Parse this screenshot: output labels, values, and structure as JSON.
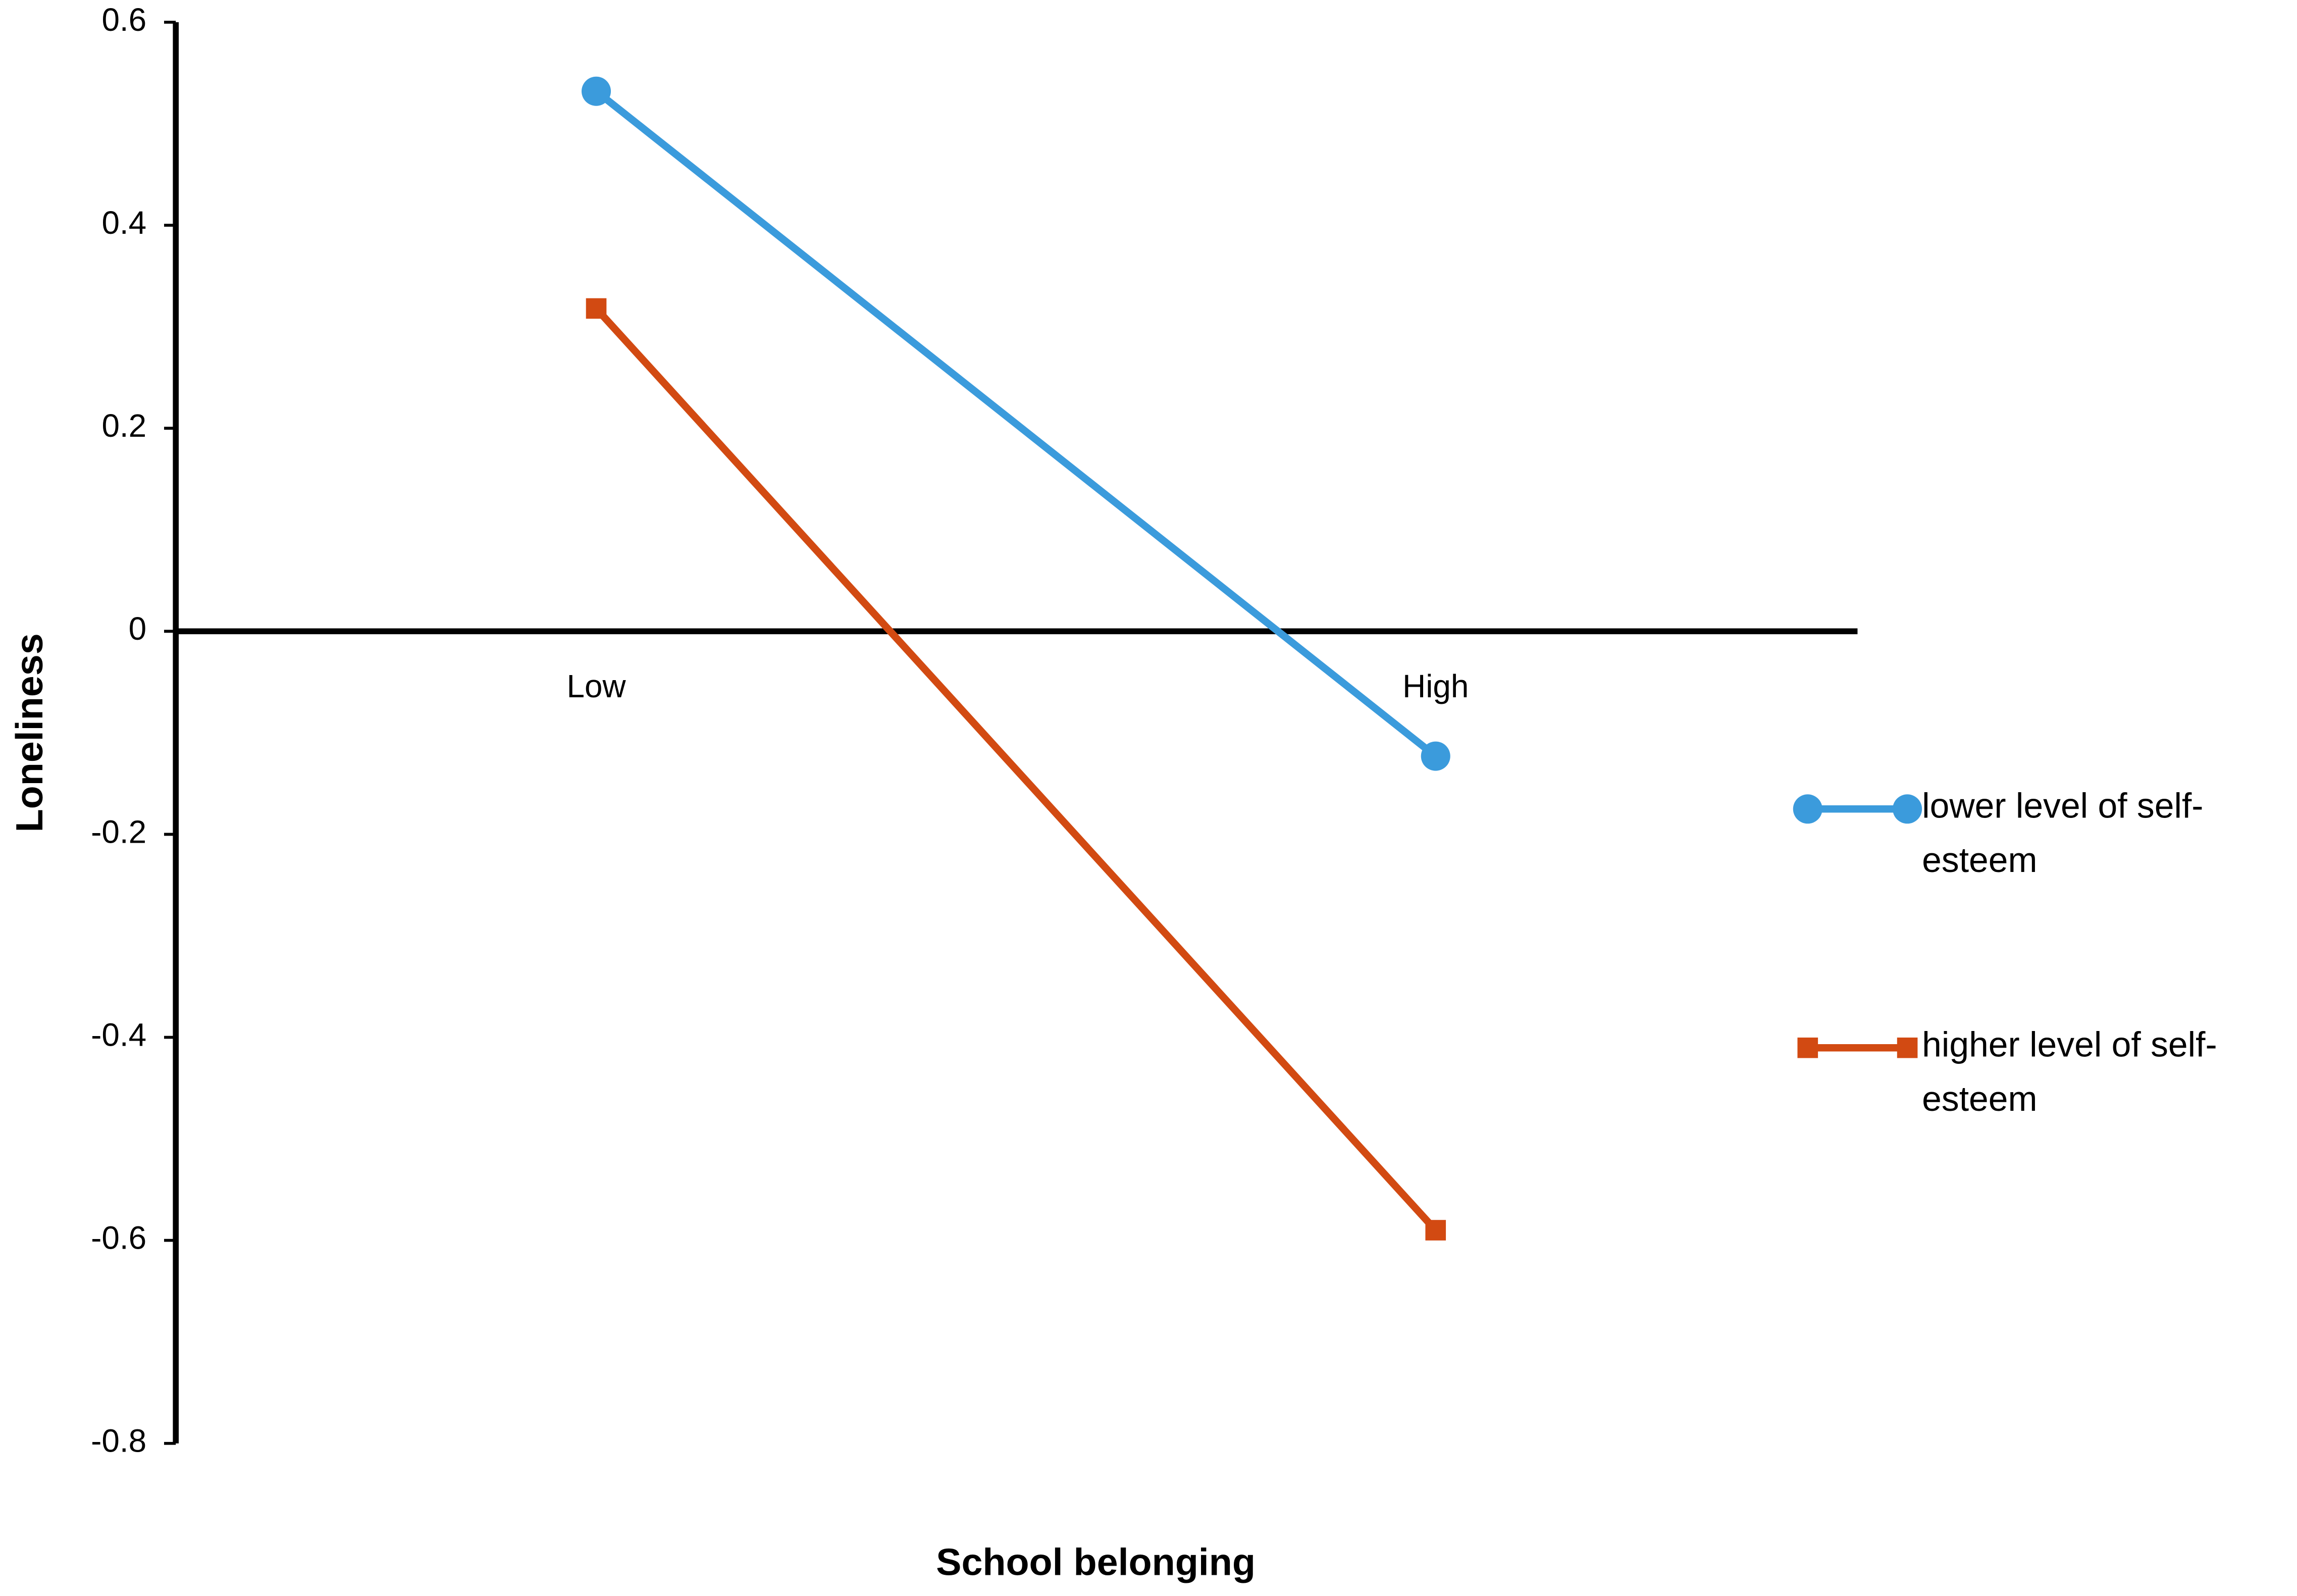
{
  "chart_data": {
    "type": "line",
    "x_label": "School belonging",
    "y_label": "Loneliness",
    "categories": [
      "Low",
      "High"
    ],
    "series": [
      {
        "name": "lower level of self-esteem",
        "color": "#3b9bdc",
        "marker": "circle",
        "values": [
          0.532,
          -0.123
        ]
      },
      {
        "name": "higher level of self-esteem",
        "color": "#d24a12",
        "marker": "square",
        "values": [
          0.318,
          -0.59
        ]
      }
    ],
    "ylim": [
      -0.8,
      0.6
    ],
    "yticks": [
      0.6,
      0.4,
      0.2,
      0,
      -0.2,
      -0.4,
      -0.6,
      -0.8
    ]
  }
}
